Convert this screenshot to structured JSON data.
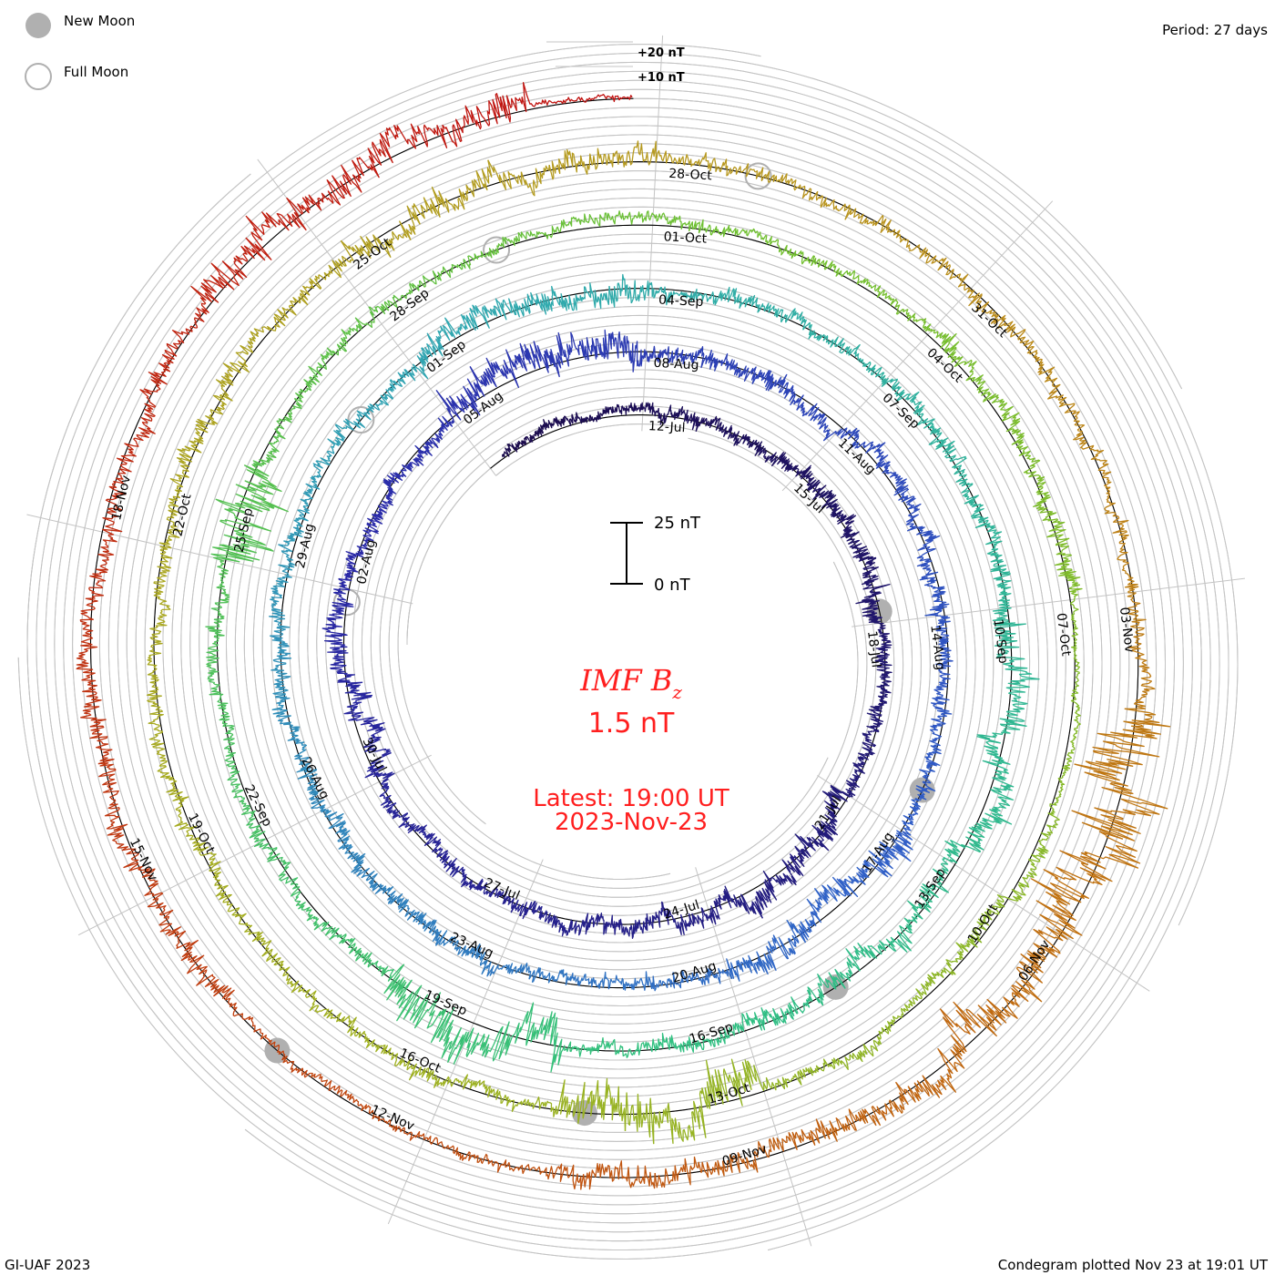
{
  "header": {
    "legend_new_moon": "New Moon",
    "legend_full_moon": "Full Moon",
    "period": "Period: 27 days",
    "scale_plus20": "+20 nT",
    "scale_plus10": "+10 nT"
  },
  "center": {
    "title_main": "IMF B",
    "title_sub": "z",
    "value": "1.5 nT",
    "scale_top": "25 nT",
    "scale_bottom": "0 nT",
    "latest_label": "Latest: 19:00 UT",
    "latest_date": "2023-Nov-23"
  },
  "footer": {
    "credit": "GI-UAF 2023",
    "plotted": "Condegram plotted Nov 23 at 19:01 UT"
  },
  "colors": {
    "text_red": "#ff1f1f",
    "grid": "#c4c4c4",
    "moon": "#b0b0b0",
    "baseline": "#000000"
  },
  "chart_data": {
    "type": "line",
    "subtype": "condegram-spiral",
    "title": "IMF Bz",
    "units": "nT",
    "period_days": 27,
    "start_date": "2023-07-09",
    "end_day": 137.8,
    "positive_direction": "outward",
    "date_labels": [
      "12-Jul",
      "15-Jul",
      "18-Jul",
      "21-Jul",
      "24-Jul",
      "27-Jul",
      "30-Jul",
      "02-Aug",
      "05-Aug",
      "08-Aug",
      "11-Aug",
      "14-Aug",
      "17-Aug",
      "20-Aug",
      "23-Aug",
      "26-Aug",
      "29-Aug",
      "01-Sep",
      "04-Sep",
      "07-Sep",
      "10-Sep",
      "13-Sep",
      "16-Sep",
      "19-Sep",
      "22-Sep",
      "25-Sep",
      "28-Sep",
      "01-Oct",
      "04-Oct",
      "07-Oct",
      "10-Oct",
      "13-Oct",
      "16-Oct",
      "19-Oct",
      "22-Oct",
      "25-Oct",
      "28-Oct",
      "31-Oct",
      "03-Nov",
      "06-Nov",
      "09-Nov",
      "12-Nov",
      "15-Nov",
      "18-Nov"
    ],
    "first_label_day": 3,
    "label_step_days": 3,
    "new_moon_days": [
      8.8,
      38.4,
      67.9,
      97.7,
      127.4
    ],
    "full_moon_days": [
      23.8,
      53.1,
      82.4,
      111.9
    ],
    "daily_mean_bz": [
      1,
      1,
      1,
      1,
      1,
      0,
      0,
      0,
      -1,
      0,
      0,
      0,
      -1,
      0,
      1,
      0,
      0,
      1,
      0,
      0,
      0,
      -1,
      0,
      0,
      0,
      0,
      0,
      3,
      3,
      2,
      1,
      1,
      0,
      0,
      1,
      0,
      0,
      -1,
      0,
      1,
      -1,
      0,
      0,
      0,
      0,
      0,
      0,
      0,
      0,
      0,
      0,
      0,
      1,
      0,
      1,
      1,
      0,
      1,
      1,
      0,
      0,
      0,
      1,
      1,
      1,
      0,
      -2,
      0,
      0,
      0,
      0,
      0,
      0,
      0,
      0,
      0,
      0,
      0,
      0,
      0,
      0,
      0,
      0,
      1,
      1,
      1,
      1,
      1,
      1,
      0,
      0,
      2,
      2,
      0,
      0,
      0,
      0,
      0,
      0,
      0,
      0,
      0,
      0,
      0,
      0,
      0,
      0,
      0,
      0,
      1,
      1,
      1,
      0,
      1,
      1,
      0,
      0,
      0,
      0,
      4,
      2,
      0,
      0,
      0,
      0,
      0,
      0,
      0,
      0,
      0,
      0,
      0,
      0,
      0,
      1,
      1,
      0,
      0
    ],
    "daily_spread_bz": [
      3,
      3,
      3,
      4,
      4,
      4,
      5,
      5,
      6,
      4,
      4,
      4,
      7,
      7,
      7,
      5,
      5,
      5,
      4,
      4,
      4,
      6,
      6,
      6,
      4,
      4,
      4,
      9,
      9,
      9,
      5,
      5,
      5,
      5,
      5,
      5,
      4,
      4,
      4,
      8,
      8,
      8,
      4,
      4,
      4,
      5,
      5,
      5,
      5,
      5,
      5,
      4,
      4,
      4,
      7,
      7,
      7,
      4,
      4,
      4,
      5,
      5,
      5,
      7,
      7,
      7,
      6,
      6,
      6,
      4,
      4,
      12,
      12,
      4,
      4,
      4,
      4,
      4,
      14,
      4,
      4,
      4,
      3,
      3,
      3,
      3,
      3,
      5,
      5,
      5,
      2,
      2,
      4,
      4,
      4,
      4,
      12,
      12,
      4,
      4,
      4,
      4,
      4,
      4,
      4,
      5,
      5,
      5,
      7,
      7,
      7,
      4,
      4,
      4,
      4,
      4,
      4,
      4,
      18,
      18,
      10,
      10,
      6,
      6,
      6,
      3,
      3,
      3,
      6,
      6,
      6,
      5,
      5,
      5,
      9,
      9,
      9,
      2
    ],
    "color_stops": [
      {
        "day": 0,
        "color": "#1a0a4a"
      },
      {
        "day": 25,
        "color": "#2a2aa8"
      },
      {
        "day": 40,
        "color": "#3060c8"
      },
      {
        "day": 55,
        "color": "#30a8b0"
      },
      {
        "day": 70,
        "color": "#30c080"
      },
      {
        "day": 85,
        "color": "#70c030"
      },
      {
        "day": 100,
        "color": "#a0b020"
      },
      {
        "day": 112,
        "color": "#b89820"
      },
      {
        "day": 120,
        "color": "#c07010"
      },
      {
        "day": 128,
        "color": "#c04010"
      },
      {
        "day": 138,
        "color": "#c01010"
      }
    ]
  }
}
